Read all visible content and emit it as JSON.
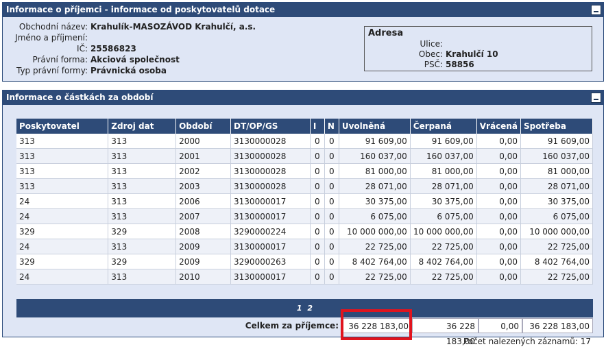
{
  "recipient_panel": {
    "title": "Informace o příjemci - informace od poskytovatelů dotace",
    "fields": [
      {
        "label": "Obchodní název:",
        "value": "Krahulík-MASOZÁVOD Krahulčí, a.s."
      },
      {
        "label": "Jméno a příjmení:",
        "value": ""
      },
      {
        "label": "IČ:",
        "value": "25586823"
      },
      {
        "label": "Právní forma:",
        "value": "Akciová společnost"
      },
      {
        "label": "Typ právní formy:",
        "value": "Právnická osoba"
      }
    ],
    "address": {
      "title": "Adresa",
      "fields": [
        {
          "label": "Ulice:",
          "value": ""
        },
        {
          "label": "Obec:",
          "value": "Krahulčí 10"
        },
        {
          "label": "PSČ:",
          "value": "58856"
        }
      ]
    }
  },
  "amounts_panel": {
    "title": "Informace o částkách za období",
    "columns": [
      "Poskytovatel",
      "Zdroj dat",
      "Období",
      "DT/OP/GS",
      "I",
      "N",
      "Uvolněná",
      "Čerpaná",
      "Vrácená",
      "Spotřeba"
    ],
    "rows": [
      [
        "313",
        "313",
        "2000",
        "3130000028",
        "0",
        "0",
        "91 609,00",
        "91 609,00",
        "0,00",
        "91 609,00"
      ],
      [
        "313",
        "313",
        "2001",
        "3130000028",
        "0",
        "0",
        "160 037,00",
        "160 037,00",
        "0,00",
        "160 037,00"
      ],
      [
        "313",
        "313",
        "2002",
        "3130000028",
        "0",
        "0",
        "81 000,00",
        "81 000,00",
        "0,00",
        "81 000,00"
      ],
      [
        "313",
        "313",
        "2003",
        "3130000028",
        "0",
        "0",
        "28 071,00",
        "28 071,00",
        "0,00",
        "28 071,00"
      ],
      [
        "24",
        "313",
        "2006",
        "3130000017",
        "0",
        "0",
        "30 375,00",
        "30 375,00",
        "0,00",
        "30 375,00"
      ],
      [
        "24",
        "313",
        "2007",
        "3130000017",
        "0",
        "0",
        "6 075,00",
        "6 075,00",
        "0,00",
        "6 075,00"
      ],
      [
        "329",
        "329",
        "2008",
        "3290000224",
        "0",
        "0",
        "10 000 000,00",
        "10 000 000,00",
        "0,00",
        "10 000 000,00"
      ],
      [
        "24",
        "313",
        "2009",
        "3130000017",
        "0",
        "0",
        "22 725,00",
        "22 725,00",
        "0,00",
        "22 725,00"
      ],
      [
        "329",
        "329",
        "2009",
        "3290000263",
        "0",
        "0",
        "8 402 764,00",
        "8 402 764,00",
        "0,00",
        "8 402 764,00"
      ],
      [
        "24",
        "313",
        "2010",
        "3130000017",
        "0",
        "0",
        "22 725,00",
        "22 725,00",
        "0,00",
        "22 725,00"
      ]
    ],
    "pager": [
      "1",
      "2"
    ],
    "totals": {
      "label": "Celkem za příjemce:",
      "uvolnena": "36 228 183,00",
      "cerpana": "36 228 183,00",
      "vracena": "0,00",
      "spotreba": "36 228 183,00"
    },
    "record_count_text": "Počet nalezených záznamů: 17"
  },
  "colors": {
    "header_bg": "#2e4b78",
    "panel_bg": "#dfe6f5",
    "highlight": "#e0141e"
  }
}
